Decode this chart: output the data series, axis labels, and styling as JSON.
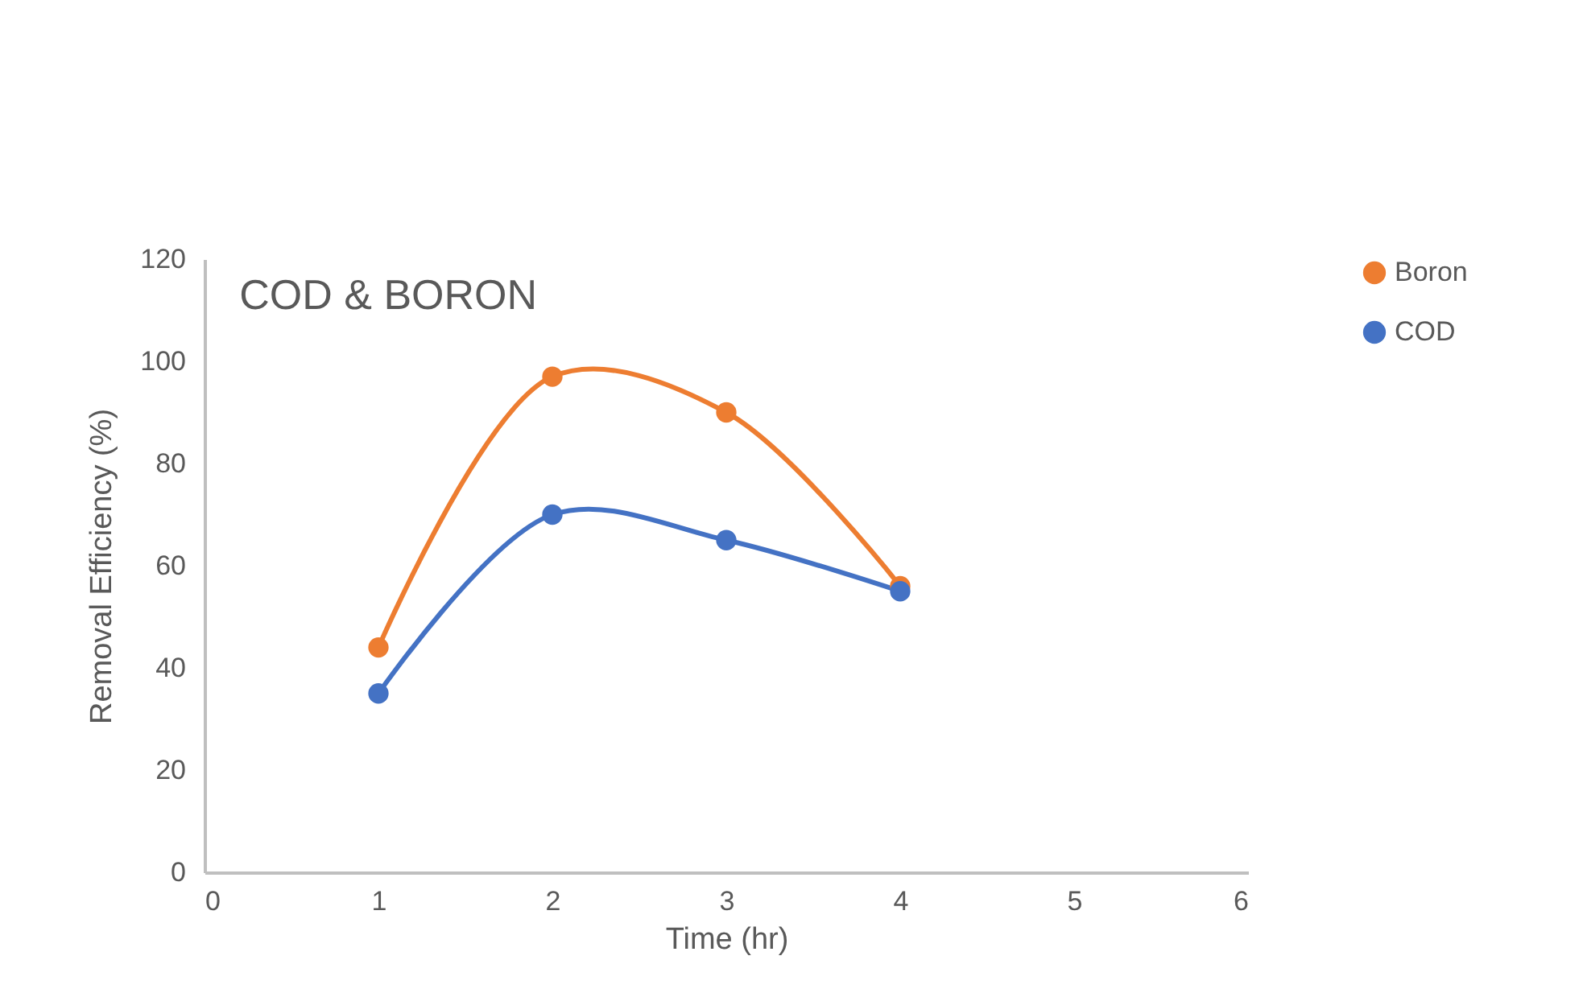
{
  "chart_data": {
    "type": "line",
    "title": "COD & BORON",
    "xlabel": "Time (hr)",
    "ylabel": "Removal Efficiency (%)",
    "x": [
      1,
      2,
      3,
      4
    ],
    "series": [
      {
        "name": "Boron",
        "color": "#ed7d31",
        "values": [
          44,
          97,
          90,
          56
        ]
      },
      {
        "name": "COD",
        "color": "#4472c4",
        "values": [
          35,
          70,
          65,
          55
        ]
      }
    ],
    "xlim": [
      0,
      6
    ],
    "xticks": [
      0,
      1,
      2,
      3,
      4,
      5,
      6
    ],
    "ylim": [
      0,
      120
    ],
    "yticks": [
      0,
      20,
      40,
      60,
      80,
      100,
      120
    ],
    "grid": false,
    "legend": "right",
    "marker": "circle",
    "line_style": "solid"
  }
}
